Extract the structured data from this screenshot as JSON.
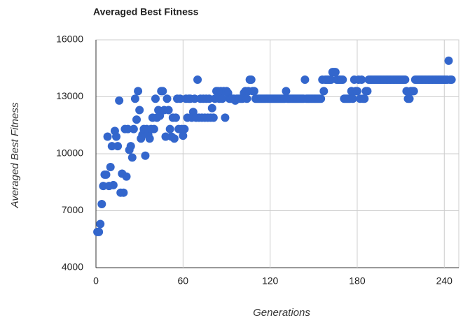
{
  "chart_data": {
    "type": "scatter",
    "title": "Averaged Best Fitness",
    "x_label": "Generations",
    "y_label": "Averaged Best Fitness",
    "color": "#3366cc",
    "grid": true,
    "xlim": [
      0,
      250
    ],
    "xticks": [
      0,
      60,
      120,
      180,
      240
    ],
    "ylim": [
      4000,
      16000
    ],
    "yticks": [
      4000,
      7000,
      10000,
      13000,
      16000
    ],
    "x": [
      1,
      2,
      3,
      4,
      5,
      6,
      7,
      8,
      9,
      10,
      11,
      12,
      13,
      14,
      15,
      16,
      17,
      18,
      19,
      20,
      21,
      22,
      23,
      24,
      25,
      26,
      27,
      28,
      29,
      30,
      31,
      32,
      33,
      34,
      35,
      36,
      37,
      38,
      39,
      40,
      41,
      42,
      43,
      44,
      45,
      46,
      47,
      48,
      49,
      50,
      51,
      52,
      53,
      54,
      55,
      56,
      57,
      58,
      59,
      60,
      61,
      62,
      63,
      64,
      65,
      66,
      67,
      68,
      69,
      70,
      71,
      72,
      73,
      74,
      75,
      76,
      77,
      78,
      79,
      80,
      81,
      82,
      83,
      84,
      85,
      86,
      87,
      88,
      89,
      90,
      91,
      92,
      93,
      94,
      95,
      96,
      97,
      98,
      99,
      100,
      101,
      102,
      103,
      104,
      105,
      106,
      107,
      108,
      109,
      110,
      111,
      112,
      113,
      114,
      115,
      116,
      117,
      118,
      119,
      120,
      121,
      122,
      123,
      124,
      125,
      126,
      127,
      128,
      129,
      130,
      131,
      132,
      133,
      134,
      135,
      136,
      137,
      138,
      139,
      140,
      141,
      142,
      143,
      144,
      145,
      146,
      147,
      148,
      149,
      150,
      151,
      152,
      153,
      154,
      155,
      156,
      157,
      158,
      159,
      160,
      161,
      162,
      163,
      164,
      165,
      166,
      167,
      168,
      169,
      170,
      171,
      172,
      173,
      174,
      175,
      176,
      177,
      178,
      179,
      180,
      181,
      182,
      183,
      184,
      185,
      186,
      187,
      188,
      189,
      190,
      191,
      192,
      193,
      194,
      195,
      196,
      197,
      198,
      199,
      200,
      201,
      202,
      203,
      204,
      205,
      206,
      207,
      208,
      209,
      210,
      211,
      212,
      213,
      214,
      215,
      216,
      217,
      218,
      219,
      220,
      221,
      222,
      223,
      224,
      225,
      226,
      227,
      228,
      229,
      230,
      231,
      232,
      233,
      234,
      235,
      236,
      237,
      238,
      239,
      240,
      241,
      242,
      243,
      244,
      245
    ],
    "values": [
      5880,
      5880,
      6300,
      7350,
      8300,
      8900,
      8900,
      10900,
      8300,
      9300,
      10400,
      8350,
      11200,
      10900,
      10400,
      12800,
      7950,
      8950,
      7950,
      11300,
      8800,
      11300,
      10200,
      10400,
      9800,
      11300,
      12900,
      11800,
      13300,
      12300,
      10800,
      11000,
      11300,
      9900,
      11300,
      11000,
      10800,
      11300,
      11900,
      11300,
      12900,
      11900,
      12300,
      12000,
      13300,
      13300,
      12300,
      10900,
      12900,
      12300,
      11300,
      10900,
      11900,
      10800,
      11900,
      12900,
      11300,
      12900,
      11300,
      10950,
      11300,
      12900,
      11900,
      12900,
      12900,
      11900,
      12200,
      12900,
      11900,
      13900,
      11900,
      12900,
      11900,
      12900,
      11900,
      12900,
      11900,
      12900,
      11900,
      12400,
      11900,
      12900,
      13300,
      13300,
      12900,
      13300,
      12900,
      13300,
      11900,
      13300,
      13200,
      12900,
      12900,
      12900,
      12900,
      12800,
      12900,
      12900,
      12900,
      12900,
      12900,
      13200,
      13300,
      12900,
      13300,
      13900,
      13900,
      13300,
      13300,
      12900,
      12900,
      12900,
      12900,
      12900,
      12900,
      12900,
      12900,
      12900,
      12900,
      12900,
      12900,
      12900,
      12900,
      12900,
      12900,
      12900,
      12900,
      12900,
      12900,
      12900,
      13300,
      12900,
      12900,
      12900,
      12900,
      12900,
      12900,
      12900,
      12900,
      12900,
      12900,
      12900,
      12900,
      13900,
      12900,
      12900,
      12900,
      12900,
      12900,
      12900,
      12900,
      12900,
      12900,
      12900,
      12900,
      13900,
      13300,
      13900,
      13900,
      13900,
      13900,
      13900,
      14300,
      14300,
      14300,
      13900,
      13900,
      13900,
      13900,
      13900,
      12900,
      12900,
      12900,
      12900,
      12900,
      13300,
      12900,
      13900,
      13300,
      13300,
      13900,
      12900,
      13900,
      12900,
      12900,
      13300,
      13300,
      13900,
      13900,
      13900,
      13900,
      13900,
      13900,
      13900,
      13900,
      13900,
      13900,
      13900,
      13900,
      13900,
      13900,
      13900,
      13900,
      13900,
      13900,
      13900,
      13900,
      13900,
      13900,
      13900,
      13900,
      13900,
      13900,
      13300,
      12900,
      12900,
      13300,
      13300,
      13300,
      13900,
      13900,
      13900,
      13900,
      13900,
      13900,
      13900,
      13900,
      13900,
      13900,
      13900,
      13900,
      13900,
      13900,
      13900,
      13900,
      13900,
      13900,
      13900,
      13900,
      13900,
      13900,
      13900,
      14900,
      13900,
      13900
    ]
  }
}
